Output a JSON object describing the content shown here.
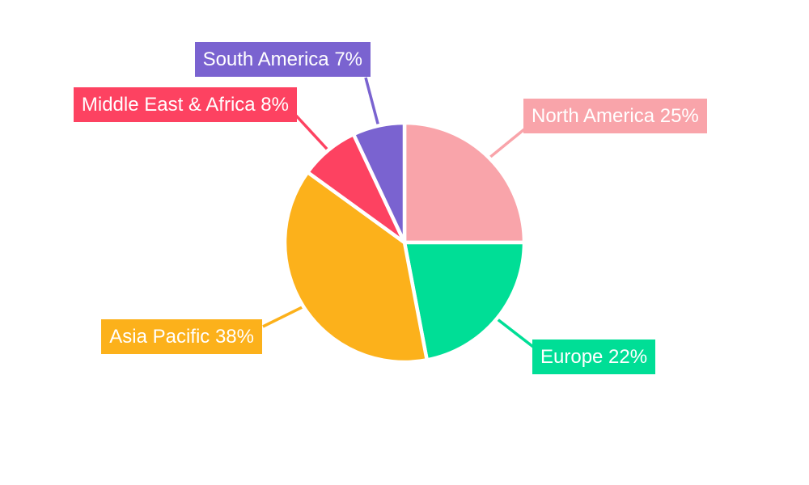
{
  "chart_data": {
    "type": "pie",
    "title": "",
    "unit": "%",
    "total": 100,
    "slices": [
      {
        "label": "North America",
        "value": 25,
        "label_text": "North America 25%",
        "color": "#F9A4AA"
      },
      {
        "label": "Europe",
        "value": 22,
        "label_text": "Europe 22%",
        "color": "#00DE96"
      },
      {
        "label": "Asia Pacific",
        "value": 38,
        "label_text": "Asia Pacific 38%",
        "color": "#FCB11B"
      },
      {
        "label": "Middle East & Africa",
        "value": 8,
        "label_text": "Middle East & Africa 8%",
        "color": "#FD4261"
      },
      {
        "label": "South America",
        "value": 7,
        "label_text": "South America 7%",
        "color": "#7A63D0"
      }
    ],
    "layout": {
      "start_angle_deg": 0,
      "direction": "clockwise",
      "center": [
        500,
        300
      ],
      "radius": 148,
      "slice_border_color": "#FFFFFF",
      "slice_border_width": 4.5,
      "leader_line_width": 3.5,
      "label_style": "outside-boxed",
      "label_text_color": "#FFFFFF",
      "background": "#FFFFFF",
      "legend": "none",
      "grid": "off"
    }
  }
}
